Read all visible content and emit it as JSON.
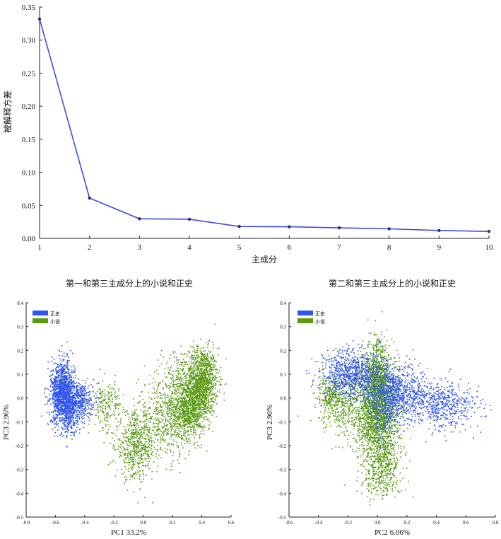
{
  "chart_data": [
    {
      "type": "line",
      "xlabel": "主成分",
      "ylabel": "被解释方差",
      "x": [
        1,
        2,
        3,
        4,
        5,
        6,
        7,
        8,
        9,
        10
      ],
      "series": [
        {
          "values": [
            0.332,
            0.061,
            0.0296,
            0.029,
            0.018,
            0.0175,
            0.016,
            0.0145,
            0.012,
            0.0105
          ]
        }
      ],
      "xlim": [
        1,
        10
      ],
      "ylim": [
        0,
        0.35
      ],
      "yticks": [
        "0.00",
        "0.05",
        "0.10",
        "0.15",
        "0.20",
        "0.25",
        "0.30",
        "0.35"
      ],
      "xticks": [
        "1",
        "2",
        "3",
        "4",
        "5",
        "6",
        "7",
        "8",
        "9",
        "10"
      ],
      "grid": false,
      "line_color": "#3a4de6"
    },
    {
      "type": "scatter",
      "title": "第一和第三主成分上的小说和正史",
      "xlabel": "PC1 33.2%",
      "ylabel": "PC3 2.96%",
      "xlim": [
        -0.8,
        0.6
      ],
      "ylim": [
        -0.5,
        0.4
      ],
      "xticks": [
        "-0.8",
        "-0.6",
        "-0.4",
        "-0.2",
        "0.0",
        "0.2",
        "0.4",
        "0.6"
      ],
      "yticks": [
        "-0.5",
        "-0.4",
        "-0.3",
        "-0.2",
        "-0.1",
        "0.0",
        "0.1",
        "0.2",
        "0.3",
        "0.4"
      ],
      "legend_position": "top-left",
      "series": [
        {
          "name": "正史",
          "color": "#2f55ee",
          "clusters": [
            {
              "cx": -0.55,
              "cy": 0.02,
              "sx": 0.04,
              "sy": 0.065,
              "n": 1300
            },
            {
              "cx": -0.44,
              "cy": -0.01,
              "sx": 0.05,
              "sy": 0.04,
              "n": 450
            },
            {
              "cx": -0.5,
              "cy": -0.08,
              "sx": 0.03,
              "sy": 0.04,
              "n": 150
            }
          ]
        },
        {
          "name": "小说",
          "color": "#5a9a14",
          "clusters": [
            {
              "cx": 0.4,
              "cy": 0.07,
              "sx": 0.055,
              "sy": 0.07,
              "n": 1200
            },
            {
              "cx": 0.31,
              "cy": -0.05,
              "sx": 0.06,
              "sy": 0.06,
              "n": 900
            },
            {
              "cx": 0.15,
              "cy": -0.08,
              "sx": 0.09,
              "sy": 0.09,
              "n": 500
            },
            {
              "cx": -0.05,
              "cy": -0.2,
              "sx": 0.07,
              "sy": 0.07,
              "n": 600
            },
            {
              "cx": -0.25,
              "cy": -0.03,
              "sx": 0.05,
              "sy": 0.05,
              "n": 200
            },
            {
              "cx": 0.25,
              "cy": 0.1,
              "sx": 0.07,
              "sy": 0.06,
              "n": 150
            }
          ]
        }
      ]
    },
    {
      "type": "scatter",
      "title": "第二和第三主成分上的小说和正史",
      "xlabel": "PC2 6.06%",
      "ylabel": "PC3 2.96%",
      "xlim": [
        -0.6,
        0.8
      ],
      "ylim": [
        -0.5,
        0.4
      ],
      "xticks": [
        "-0.6",
        "-0.4",
        "-0.2",
        "0.0",
        "0.2",
        "0.4",
        "0.6",
        "0.8"
      ],
      "yticks": [
        "-0.5",
        "-0.4",
        "-0.3",
        "-0.2",
        "-0.1",
        "0.0",
        "0.1",
        "0.2",
        "0.3",
        "0.4"
      ],
      "legend_position": "top-left",
      "series": [
        {
          "name": "正史",
          "color": "#2f55ee",
          "clusters": [
            {
              "cx": -0.18,
              "cy": 0.1,
              "sx": 0.1,
              "sy": 0.05,
              "n": 800
            },
            {
              "cx": 0.15,
              "cy": 0.02,
              "sx": 0.1,
              "sy": 0.06,
              "n": 700
            },
            {
              "cx": 0.45,
              "cy": -0.03,
              "sx": 0.12,
              "sy": 0.05,
              "n": 550
            },
            {
              "cx": 0.05,
              "cy": -0.02,
              "sx": 0.06,
              "sy": 0.08,
              "n": 300
            }
          ]
        },
        {
          "name": "小说",
          "color": "#5a9a14",
          "clusters": [
            {
              "cx": 0.0,
              "cy": 0.08,
              "sx": 0.05,
              "sy": 0.08,
              "n": 900
            },
            {
              "cx": 0.0,
              "cy": -0.08,
              "sx": 0.07,
              "sy": 0.09,
              "n": 1300
            },
            {
              "cx": -0.2,
              "cy": -0.02,
              "sx": 0.1,
              "sy": 0.07,
              "n": 500
            },
            {
              "cx": 0.03,
              "cy": -0.28,
              "sx": 0.07,
              "sy": 0.07,
              "n": 500
            },
            {
              "cx": -0.32,
              "cy": 0.01,
              "sx": 0.04,
              "sy": 0.04,
              "n": 200
            }
          ]
        }
      ]
    }
  ]
}
